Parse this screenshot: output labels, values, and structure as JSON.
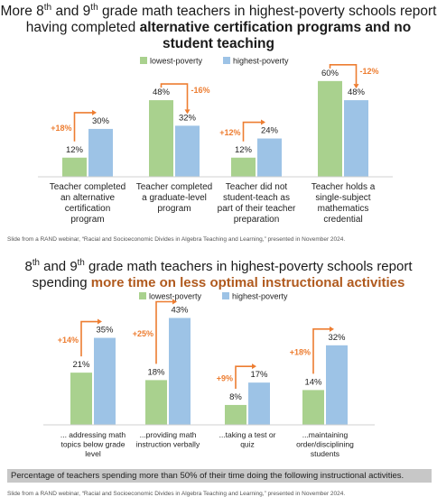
{
  "colors": {
    "lowest": "#a9d18e",
    "highest": "#9dc3e6",
    "arrow": "#ed7d31",
    "change_text": "#ed7d31"
  },
  "chart_data": [
    {
      "type": "bar",
      "title_parts": {
        "pre1": "More 8",
        "sup1": "th",
        "mid1": " and 9",
        "sup2": "th",
        "mid2": " grade math teachers in highest-poverty schools report having completed ",
        "bold": "alternative certification programs and no student teaching"
      },
      "legend": [
        "lowest-poverty",
        "highest-poverty"
      ],
      "categories": [
        [
          "Teacher completed",
          "an alternative",
          "certification",
          "program"
        ],
        [
          "Teacher completed",
          "a graduate-level",
          "program"
        ],
        [
          "Teacher did not",
          "student-teach as",
          "part of their teacher",
          "preparation"
        ],
        [
          "Teacher holds a",
          "single-subject",
          "mathematics",
          "credential"
        ]
      ],
      "series": [
        {
          "name": "lowest-poverty",
          "values": [
            12,
            48,
            12,
            60
          ],
          "labels": [
            "12%",
            "48%",
            "12%",
            "60%"
          ]
        },
        {
          "name": "highest-poverty",
          "values": [
            30,
            32,
            24,
            48
          ],
          "labels": [
            "30%",
            "32%",
            "24%",
            "48%"
          ]
        }
      ],
      "changes": [
        "+18%",
        "-16%",
        "+12%",
        "-12%"
      ],
      "ylim": [
        0,
        65
      ],
      "source": "Slide from a RAND webinar, “Racial and Socioeconomic Divides in Algebra Teaching and Learning,” presented in November 2024."
    },
    {
      "type": "bar",
      "title_parts": {
        "pre1": "8",
        "sup1": "th",
        "mid1": " and 9",
        "sup2": "th",
        "mid2": " grade math teachers in highest-poverty schools report spending ",
        "bold": "more time on less optimal instructional activities"
      },
      "legend": [
        "lowest-poverty",
        "highest-poverty"
      ],
      "categories": [
        [
          "... addressing math",
          "topics below grade",
          "level"
        ],
        [
          "...providing math",
          "instruction verbally"
        ],
        [
          "...taking a test or",
          "quiz"
        ],
        [
          "...maintaining",
          "order/disciplining",
          "students"
        ]
      ],
      "series": [
        {
          "name": "lowest-poverty",
          "values": [
            21,
            18,
            8,
            14
          ],
          "labels": [
            "21%",
            "18%",
            "8%",
            "14%"
          ]
        },
        {
          "name": "highest-poverty",
          "values": [
            35,
            43,
            17,
            32
          ],
          "labels": [
            "35%",
            "43%",
            "17%",
            "32%"
          ]
        }
      ],
      "changes": [
        "+14%",
        "+25%",
        "+9%",
        "+18%"
      ],
      "ylim": [
        0,
        45
      ],
      "caption": "Percentage of teachers spending more than 50% of their time doing the following instructional activities.",
      "source": "Slide from a RAND webinar, “Racial and Socioeconomic Divides in Algebra Teaching and Learning,” presented in November 2024."
    }
  ]
}
